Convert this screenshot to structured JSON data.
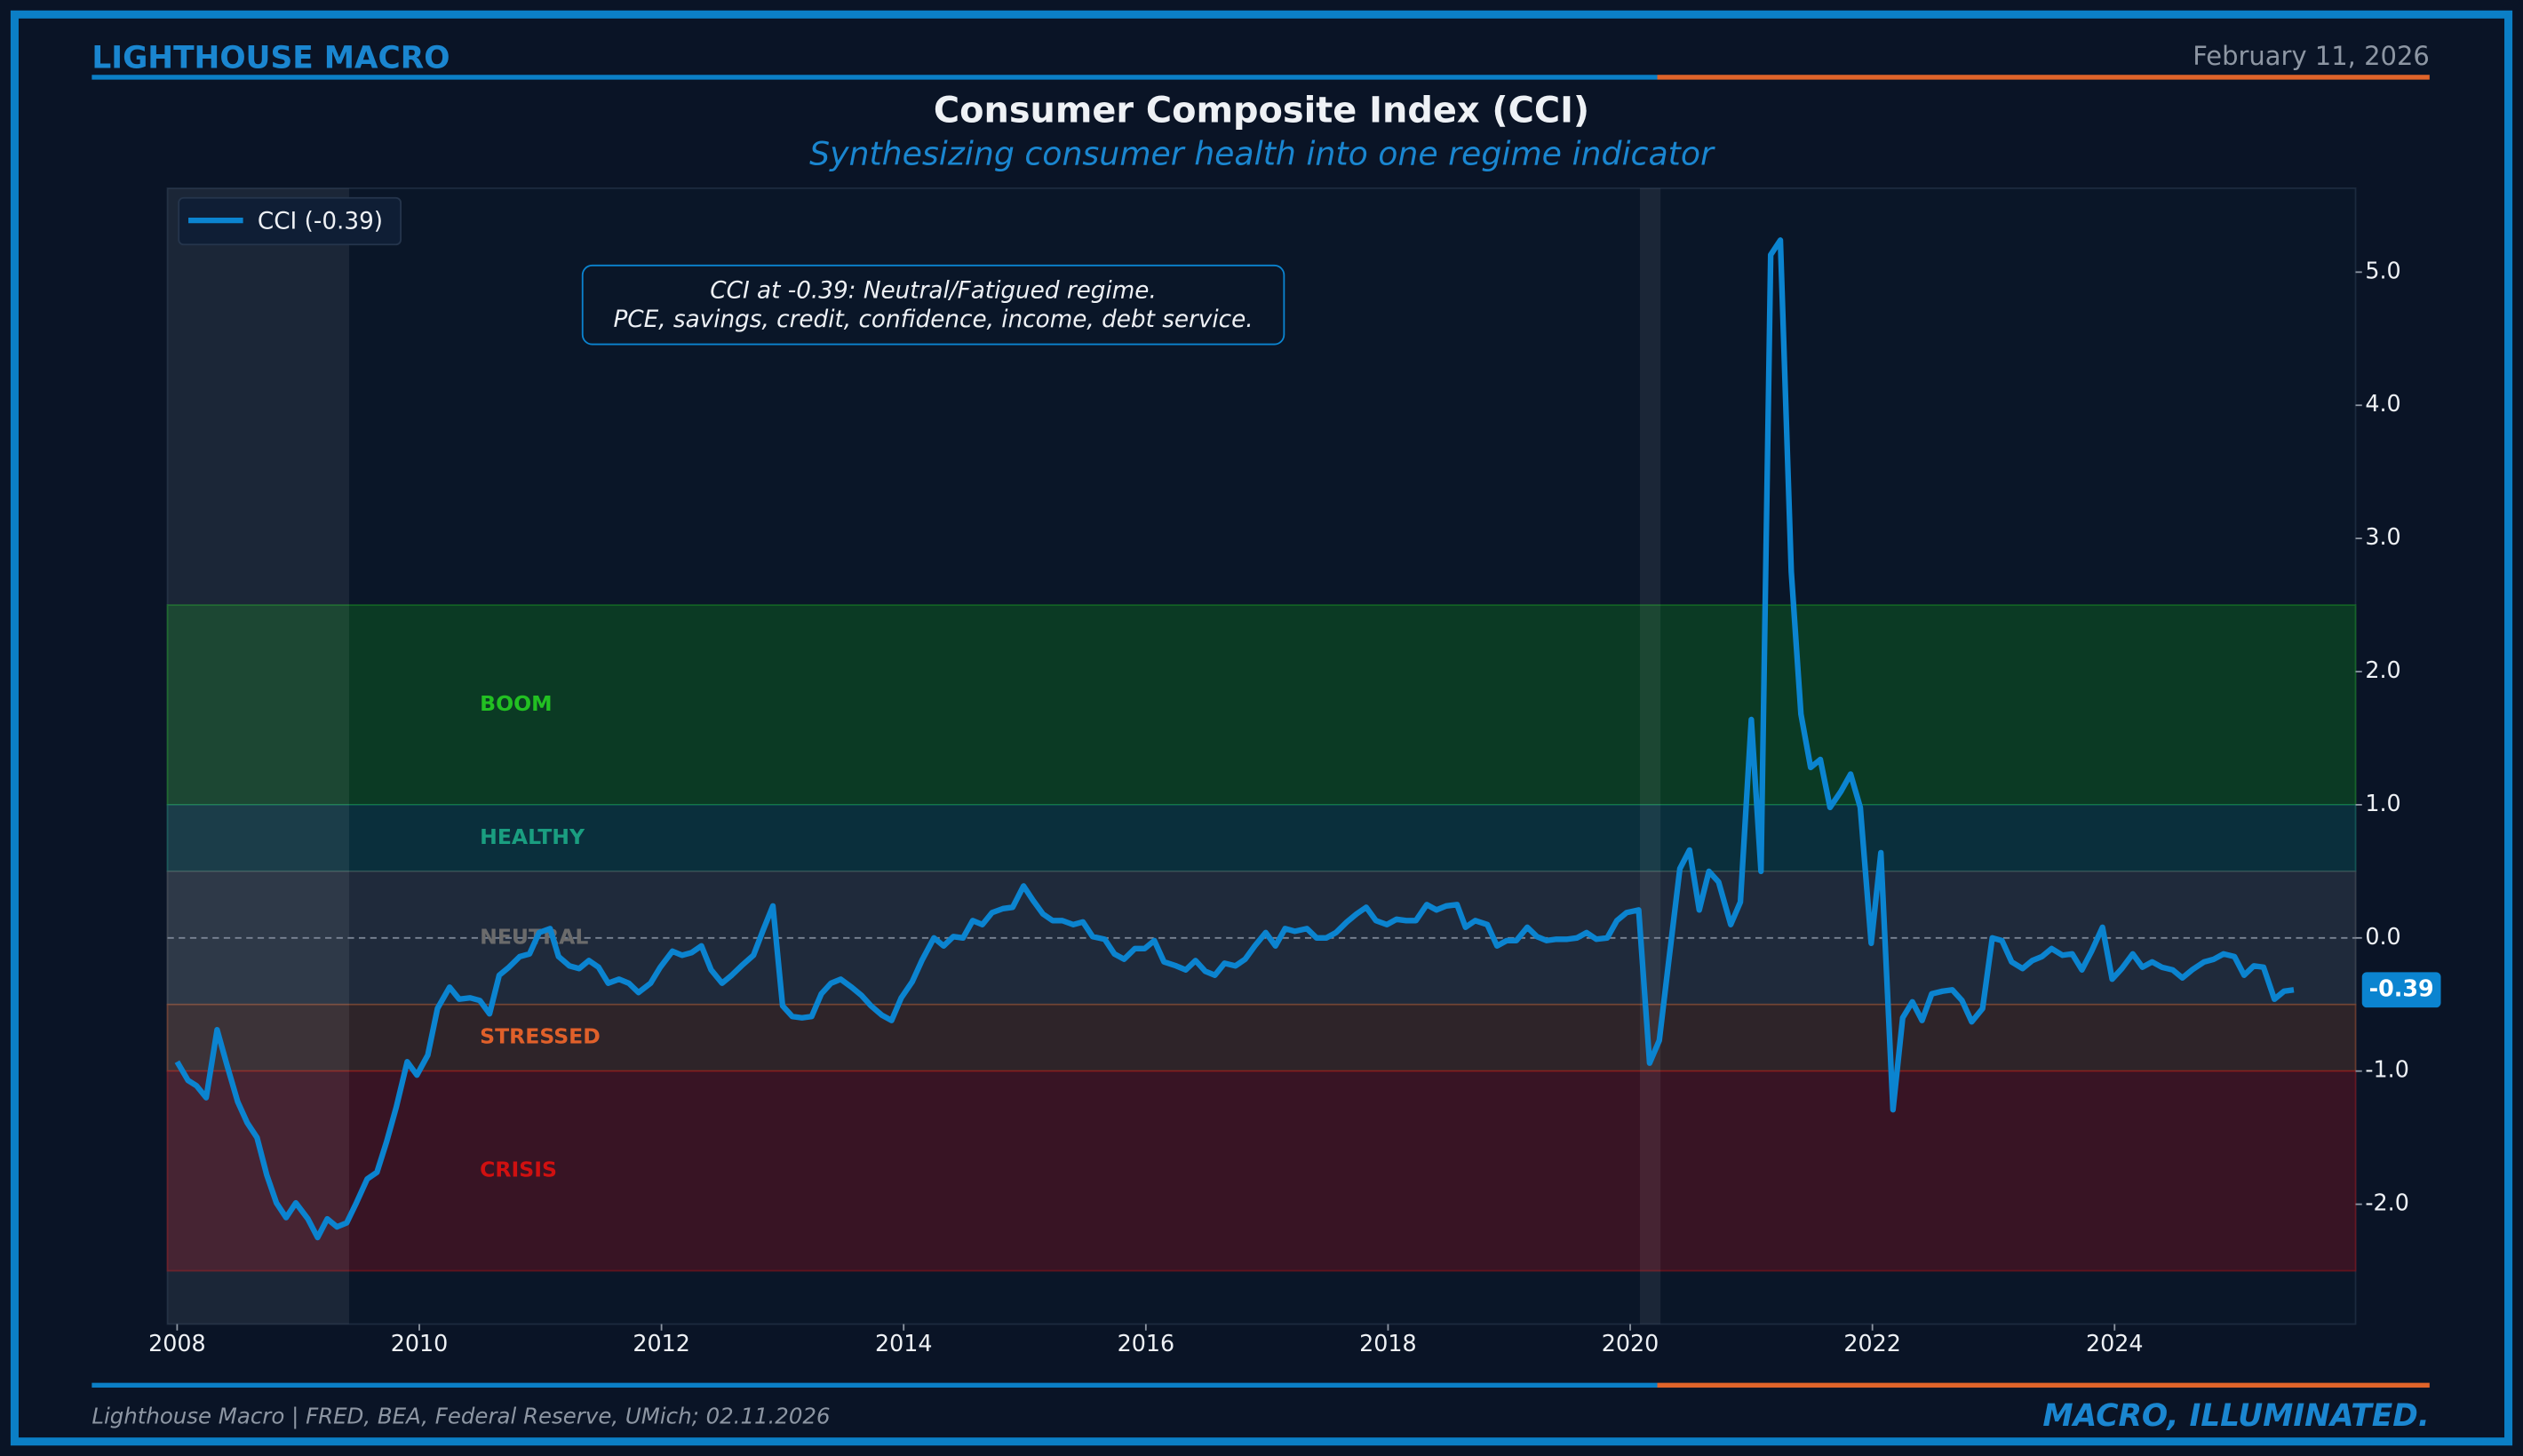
{
  "header": {
    "brand": "LIGHTHOUSE MACRO",
    "date": "February 11, 2026"
  },
  "footer": {
    "source": "Lighthouse Macro | FRED, BEA, Federal Reserve, UMich; 02.11.2026",
    "tagline": "MACRO, ILLUMINATED."
  },
  "chart_data": {
    "type": "line",
    "title": "Consumer Composite Index (CCI)",
    "subtitle": "Synthesizing consumer health into one regime indicator",
    "annotation": [
      "CCI at -0.39: Neutral/Fatigued regime.",
      "PCE, savings, credit, confidence, income, debt service."
    ],
    "legend": "upper left",
    "end_label": "-0.39",
    "reference_line": 0,
    "xlim": [
      2007.92,
      2025.99
    ],
    "ylim": [
      -2.9,
      5.63
    ],
    "xticks": [
      2008,
      2010,
      2012,
      2014,
      2016,
      2018,
      2020,
      2022,
      2024
    ],
    "yticks": [
      {
        "value": -2,
        "label": "-2.0"
      },
      {
        "value": -1,
        "label": "-1.0"
      },
      {
        "value": 0,
        "label": "0.0"
      },
      {
        "value": 1,
        "label": "1.0"
      },
      {
        "value": 2,
        "label": "2.0"
      },
      {
        "value": 3,
        "label": "3.0"
      },
      {
        "value": 4,
        "label": "4.0"
      },
      {
        "value": 5,
        "label": "5.0"
      }
    ],
    "recessions": [
      [
        2007.92,
        2009.42
      ],
      [
        2020.08,
        2020.25
      ]
    ],
    "zone_label_x": 2010.5,
    "zones": [
      {
        "name": "BOOM",
        "range": [
          1,
          2.5
        ],
        "fill": "#0b3a24",
        "color": "#22c022"
      },
      {
        "name": "HEALTHY",
        "range": [
          0.5,
          1
        ],
        "fill": "#0a2f3c",
        "color": "#1a9e80"
      },
      {
        "name": "NEUTRAL",
        "range": [
          -0.5,
          0.5
        ],
        "fill": "#1f2a3b",
        "color": "#6b6b6b"
      },
      {
        "name": "STRESSED",
        "range": [
          -1,
          -0.5
        ],
        "fill": "#2e2429",
        "color": "#e0602a"
      },
      {
        "name": "CRISIS",
        "range": [
          -2.5,
          -1
        ],
        "fill": "#381424",
        "color": "#d01010"
      }
    ],
    "x": [
      2008.0,
      2008.09,
      2008.16,
      2008.24,
      2008.33,
      2008.41,
      2008.5,
      2008.58,
      2008.66,
      2008.74,
      2008.82,
      2008.9,
      2008.98,
      2009.08,
      2009.16,
      2009.24,
      2009.32,
      2009.4,
      2009.48,
      2009.57,
      2009.65,
      2009.73,
      2009.81,
      2009.9,
      2009.98,
      2010.07,
      2010.15,
      2010.25,
      2010.33,
      2010.42,
      2010.5,
      2010.58,
      2010.66,
      2010.74,
      2010.83,
      2010.91,
      2010.99,
      2011.08,
      2011.15,
      2011.24,
      2011.32,
      2011.4,
      2011.48,
      2011.56,
      2011.65,
      2011.73,
      2011.81,
      2011.91,
      2011.99,
      2012.09,
      2012.17,
      2012.25,
      2012.33,
      2012.41,
      2012.5,
      2012.58,
      2012.66,
      2012.76,
      2012.84,
      2012.92,
      2013.0,
      2013.08,
      2013.16,
      2013.24,
      2013.32,
      2013.4,
      2013.48,
      2013.57,
      2013.65,
      2013.73,
      2013.82,
      2013.9,
      2013.98,
      2014.07,
      2014.15,
      2014.25,
      2014.33,
      2014.41,
      2014.49,
      2014.57,
      2014.65,
      2014.73,
      2014.82,
      2014.9,
      2014.99,
      2015.07,
      2015.15,
      2015.23,
      2015.31,
      2015.4,
      2015.48,
      2015.56,
      2015.66,
      2015.74,
      2015.82,
      2015.91,
      2015.99,
      2016.07,
      2016.15,
      2016.25,
      2016.33,
      2016.41,
      2016.49,
      2016.57,
      2016.65,
      2016.74,
      2016.82,
      2016.9,
      2016.99,
      2017.07,
      2017.15,
      2017.23,
      2017.33,
      2017.41,
      2017.49,
      2017.57,
      2017.66,
      2017.74,
      2017.82,
      2017.9,
      2017.99,
      2018.07,
      2018.15,
      2018.23,
      2018.32,
      2018.4,
      2018.48,
      2018.57,
      2018.64,
      2018.72,
      2018.82,
      2018.9,
      2018.98,
      2019.06,
      2019.15,
      2019.23,
      2019.31,
      2019.39,
      2019.48,
      2019.56,
      2019.64,
      2019.72,
      2019.81,
      2019.89,
      2019.97,
      2020.07,
      2020.16,
      2020.24,
      2020.32,
      2020.41,
      2020.49,
      2020.57,
      2020.65,
      2020.73,
      2020.83,
      2020.91,
      2021.0,
      2021.08,
      2021.16,
      2021.24,
      2021.33,
      2021.41,
      2021.49,
      2021.57,
      2021.65,
      2021.74,
      2021.82,
      2021.9,
      2021.99,
      2022.07,
      2022.17,
      2022.25,
      2022.33,
      2022.41,
      2022.49,
      2022.58,
      2022.66,
      2022.74,
      2022.82,
      2022.91,
      2022.99,
      2023.07,
      2023.15,
      2023.24,
      2023.32,
      2023.4,
      2023.48,
      2023.57,
      2023.65,
      2023.73,
      2023.81,
      2023.9,
      2023.98,
      2024.06,
      2024.15,
      2024.23,
      2024.31,
      2024.39,
      2024.48,
      2024.56,
      2024.64,
      2024.74,
      2024.82,
      2024.9,
      2024.99,
      2025.07,
      2025.15,
      2025.23,
      2025.32,
      2025.4,
      2025.48
    ],
    "series": [
      {
        "name": "CCI (-0.39)",
        "color": "#0b84d0",
        "values": [
          -0.93,
          -1.07,
          -1.11,
          -1.2,
          -0.69,
          -0.95,
          -1.23,
          -1.39,
          -1.5,
          -1.78,
          -1.99,
          -2.1,
          -1.99,
          -2.11,
          -2.25,
          -2.11,
          -2.17,
          -2.14,
          -1.99,
          -1.81,
          -1.76,
          -1.53,
          -1.27,
          -0.93,
          -1.03,
          -0.88,
          -0.53,
          -0.37,
          -0.46,
          -0.45,
          -0.47,
          -0.57,
          -0.28,
          -0.22,
          -0.14,
          -0.12,
          0.04,
          0.07,
          -0.14,
          -0.21,
          -0.23,
          -0.17,
          -0.22,
          -0.34,
          -0.31,
          -0.34,
          -0.41,
          -0.34,
          -0.22,
          -0.1,
          -0.13,
          -0.11,
          -0.06,
          -0.24,
          -0.34,
          -0.28,
          -0.21,
          -0.13,
          0.06,
          0.24,
          -0.51,
          -0.59,
          -0.6,
          -0.59,
          -0.42,
          -0.34,
          -0.31,
          -0.37,
          -0.43,
          -0.51,
          -0.58,
          -0.62,
          -0.45,
          -0.33,
          -0.17,
          0.0,
          -0.06,
          0.01,
          0.0,
          0.13,
          0.1,
          0.19,
          0.22,
          0.23,
          0.39,
          0.28,
          0.18,
          0.13,
          0.13,
          0.1,
          0.12,
          0.01,
          -0.01,
          -0.12,
          -0.16,
          -0.08,
          -0.08,
          -0.02,
          -0.18,
          -0.21,
          -0.24,
          -0.17,
          -0.25,
          -0.28,
          -0.19,
          -0.21,
          -0.16,
          -0.06,
          0.04,
          -0.06,
          0.07,
          0.05,
          0.07,
          0.0,
          0.0,
          0.04,
          0.12,
          0.18,
          0.23,
          0.13,
          0.1,
          0.14,
          0.13,
          0.13,
          0.25,
          0.21,
          0.24,
          0.25,
          0.08,
          0.13,
          0.1,
          -0.06,
          -0.02,
          -0.02,
          0.08,
          0.01,
          -0.02,
          -0.01,
          -0.01,
          0.0,
          0.04,
          -0.01,
          0.0,
          0.13,
          0.19,
          0.21,
          -0.94,
          -0.77,
          -0.16,
          0.52,
          0.66,
          0.21,
          0.5,
          0.42,
          0.1,
          0.27,
          1.64,
          0.5,
          5.13,
          5.24,
          2.75,
          1.68,
          1.28,
          1.34,
          0.98,
          1.1,
          1.23,
          0.98,
          -0.04,
          0.64,
          -1.29,
          -0.6,
          -0.48,
          -0.62,
          -0.42,
          -0.4,
          -0.39,
          -0.47,
          -0.63,
          -0.53,
          0.0,
          -0.02,
          -0.18,
          -0.23,
          -0.17,
          -0.14,
          -0.08,
          -0.13,
          -0.12,
          -0.24,
          -0.1,
          0.08,
          -0.31,
          -0.23,
          -0.12,
          -0.22,
          -0.18,
          -0.22,
          -0.24,
          -0.3,
          -0.24,
          -0.18,
          -0.16,
          -0.12,
          -0.14,
          -0.28,
          -0.21,
          -0.22,
          -0.46,
          -0.4,
          -0.39
        ]
      }
    ]
  }
}
